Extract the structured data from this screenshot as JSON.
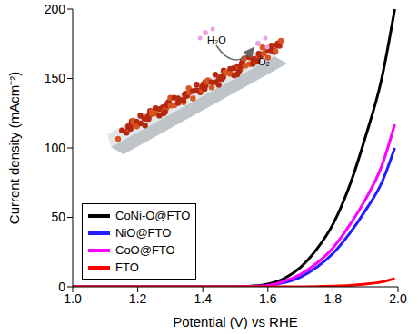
{
  "chart_data": {
    "type": "line",
    "x_label": "Potential (V) vs RHE",
    "y_label": "Current density (mAcm⁻²)",
    "x": [
      1.0,
      1.1,
      1.2,
      1.3,
      1.4,
      1.5,
      1.55,
      1.6,
      1.65,
      1.7,
      1.75,
      1.8,
      1.85,
      1.9,
      1.95,
      1.99
    ],
    "series": [
      {
        "name": "CoNi-O@FTO",
        "color": "#000000",
        "values": [
          0,
          0,
          0,
          0,
          0,
          0,
          0.5,
          2,
          6,
          14,
          27,
          45,
          72,
          108,
          150,
          200
        ]
      },
      {
        "name": "NiO@FTO",
        "color": "#1f1fff",
        "values": [
          0,
          0,
          0,
          0,
          0,
          0,
          0.2,
          1,
          3,
          7,
          14,
          24,
          38,
          55,
          75,
          100
        ]
      },
      {
        "name": "CoO@FTO",
        "color": "#ff00ff",
        "values": [
          0,
          0,
          0,
          0,
          0,
          0,
          0.2,
          1,
          4,
          9,
          17,
          28,
          44,
          63,
          87,
          117
        ]
      },
      {
        "name": "FTO",
        "color": "#ff0000",
        "values": [
          0,
          0,
          0,
          0,
          0,
          0,
          0,
          0,
          0,
          0,
          0.2,
          0.5,
          1,
          2,
          3.5,
          6
        ]
      }
    ],
    "xlim": [
      1.0,
      2.0
    ],
    "xticks": [
      {
        "value": 1.0,
        "label": "1.0"
      },
      1.2,
      1.4,
      1.6,
      1.8,
      {
        "value": 2.0,
        "label": "2.0"
      }
    ],
    "ylim": [
      0,
      200
    ],
    "yticks": [
      0,
      50,
      100,
      150,
      200
    ],
    "legend": "lower left",
    "annotations": [
      "H₂O",
      "O₂"
    ]
  }
}
